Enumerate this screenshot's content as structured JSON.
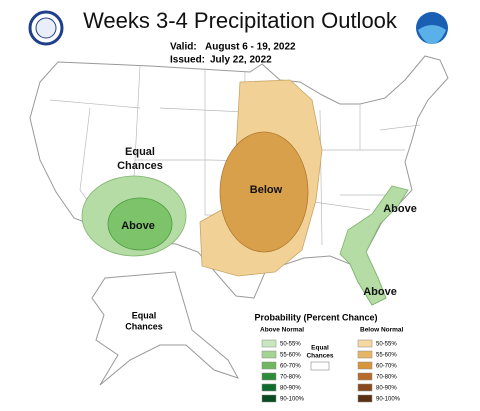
{
  "header": {
    "title": "Weeks 3-4 Precipitation Outlook",
    "valid_label": "Valid:",
    "valid_dates": "August 6 - 19, 2022",
    "issued_label": "Issued:",
    "issued_date": "July 22, 2022"
  },
  "map_labels": {
    "equal_west": [
      "Equal",
      "Chances"
    ],
    "above_southwest": "Above",
    "below_central": "Below",
    "above_carolinas": "Above",
    "above_florida": "Above",
    "equal_alaska": [
      "Equal",
      "Chances"
    ]
  },
  "legend": {
    "title": "Probability (Percent Chance)",
    "above_title": "Above Normal",
    "below_title": "Below Normal",
    "equal_chances": [
      "Equal",
      "Chances"
    ],
    "above": [
      {
        "label": "50-55%",
        "color": "#c9e7bf"
      },
      {
        "label": "55-60%",
        "color": "#a3d494"
      },
      {
        "label": "60-70%",
        "color": "#70b85f"
      },
      {
        "label": "70-80%",
        "color": "#2e8b3a"
      },
      {
        "label": "80-90%",
        "color": "#0f6a2d"
      },
      {
        "label": "90-100%",
        "color": "#0a4a20"
      }
    ],
    "below": [
      {
        "label": "50-55%",
        "color": "#f5d9a0"
      },
      {
        "label": "55-60%",
        "color": "#e8b567"
      },
      {
        "label": "60-70%",
        "color": "#d8963c"
      },
      {
        "label": "70-80%",
        "color": "#b86a2a"
      },
      {
        "label": "80-90%",
        "color": "#8a4a1f"
      },
      {
        "label": "90-100%",
        "color": "#5a2f14"
      }
    ]
  }
}
